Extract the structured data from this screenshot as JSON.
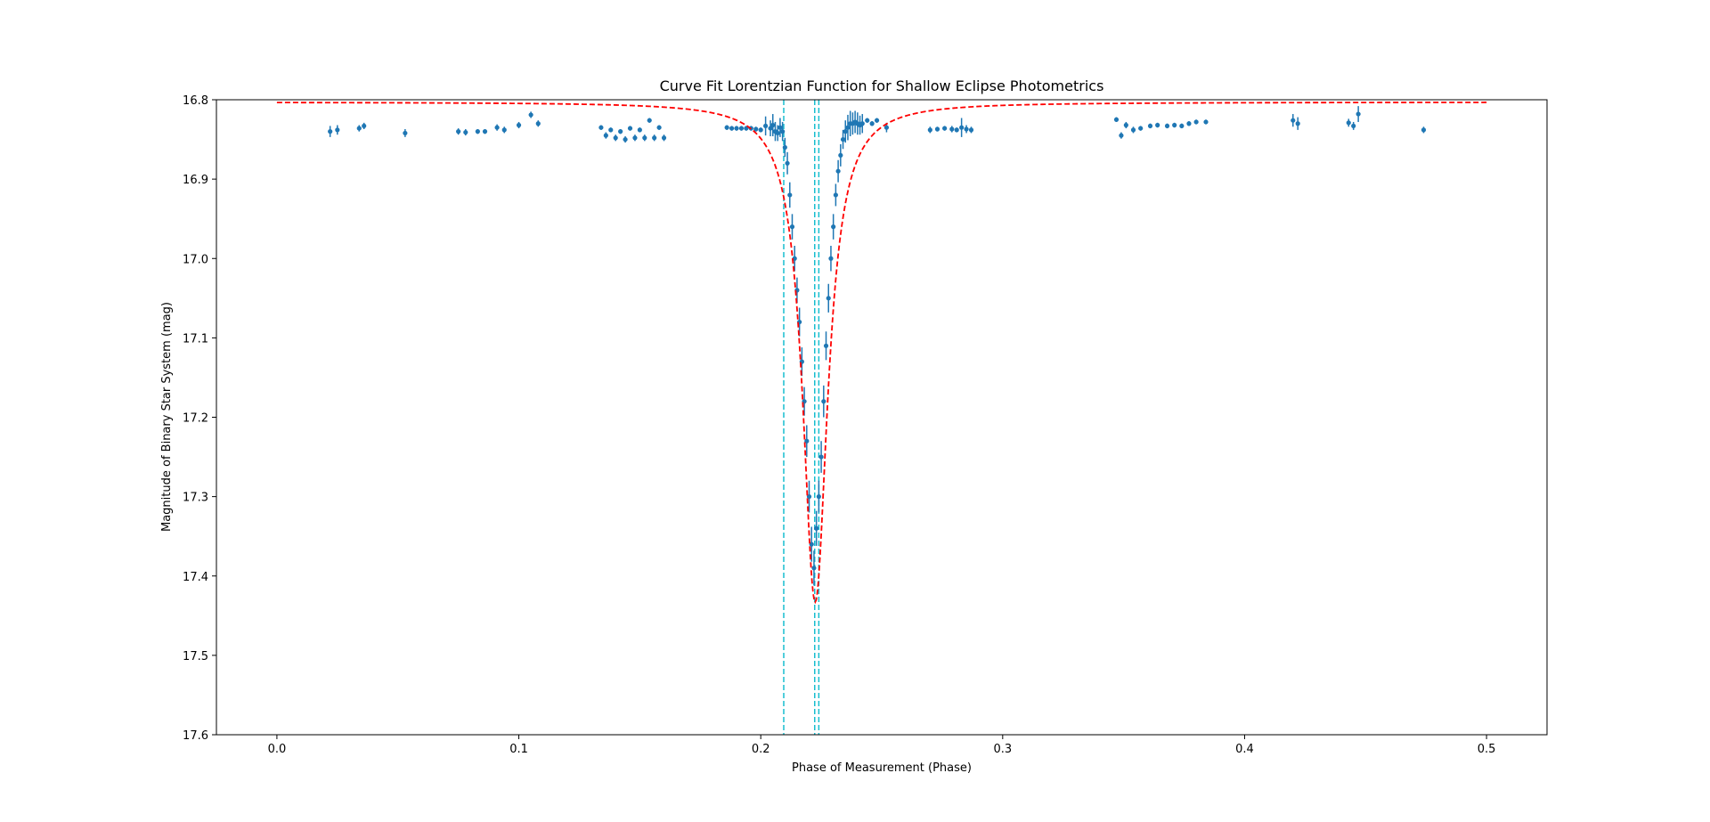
{
  "chart_data": {
    "type": "scatter",
    "title": "Curve Fit Lorentzian Function for Shallow Eclipse Photometrics",
    "xlabel": "Phase of Measurement (Phase)",
    "ylabel": "Magnitude of Binary Star System (mag)",
    "xlim": [
      -0.025,
      0.525
    ],
    "ylim": [
      16.8,
      17.6
    ],
    "y_inverted": true,
    "grid": false,
    "legend": "none",
    "xticks": [
      0.0,
      0.1,
      0.2,
      0.3,
      0.4,
      0.5
    ],
    "xtick_labels": [
      "0.0",
      "0.1",
      "0.2",
      "0.3",
      "0.4",
      "0.5"
    ],
    "yticks": [
      16.8,
      16.9,
      17.0,
      17.1,
      17.2,
      17.3,
      17.4,
      17.5,
      17.6
    ],
    "ytick_labels": [
      "16.8",
      "16.9",
      "17.0",
      "17.1",
      "17.2",
      "17.3",
      "17.4",
      "17.5",
      "17.6"
    ],
    "colors": {
      "data": "#1f77b4",
      "fit": "#ff0000",
      "vlines": "#17becf"
    },
    "series": [
      {
        "kind": "errorbar-points",
        "color": "#1f77b4",
        "x": [
          0.022,
          0.025,
          0.034,
          0.036,
          0.053,
          0.075,
          0.078,
          0.083,
          0.086,
          0.091,
          0.094,
          0.1,
          0.105,
          0.108,
          0.134,
          0.136,
          0.138,
          0.14,
          0.142,
          0.144,
          0.146,
          0.148,
          0.15,
          0.152,
          0.154,
          0.156,
          0.158,
          0.16,
          0.186,
          0.188,
          0.19,
          0.192,
          0.194,
          0.196,
          0.198,
          0.2,
          0.202,
          0.204,
          0.205,
          0.206,
          0.207,
          0.208,
          0.209,
          0.21,
          0.211,
          0.212,
          0.213,
          0.214,
          0.215,
          0.216,
          0.217,
          0.218,
          0.219,
          0.22,
          0.221,
          0.222,
          0.223,
          0.224,
          0.225,
          0.226,
          0.227,
          0.228,
          0.229,
          0.23,
          0.231,
          0.232,
          0.233,
          0.234,
          0.235,
          0.236,
          0.237,
          0.238,
          0.239,
          0.24,
          0.241,
          0.242,
          0.244,
          0.246,
          0.248,
          0.252,
          0.27,
          0.273,
          0.276,
          0.279,
          0.281,
          0.283,
          0.285,
          0.287,
          0.347,
          0.349,
          0.351,
          0.354,
          0.357,
          0.361,
          0.364,
          0.368,
          0.371,
          0.374,
          0.377,
          0.38,
          0.384,
          0.42,
          0.422,
          0.443,
          0.445,
          0.447,
          0.474
        ],
        "y": [
          16.84,
          16.838,
          16.836,
          16.833,
          16.842,
          16.84,
          16.841,
          16.84,
          16.84,
          16.835,
          16.838,
          16.832,
          16.819,
          16.83,
          16.835,
          16.845,
          16.838,
          16.848,
          16.84,
          16.85,
          16.836,
          16.848,
          16.838,
          16.848,
          16.826,
          16.848,
          16.835,
          16.848,
          16.835,
          16.836,
          16.836,
          16.836,
          16.836,
          16.836,
          16.837,
          16.838,
          16.833,
          16.836,
          16.832,
          16.84,
          16.842,
          16.835,
          16.84,
          16.86,
          16.88,
          16.92,
          16.96,
          17.0,
          17.04,
          17.08,
          17.13,
          17.18,
          17.23,
          17.3,
          17.36,
          17.39,
          17.34,
          17.3,
          17.25,
          17.18,
          17.11,
          17.05,
          17.0,
          16.96,
          16.92,
          16.89,
          16.87,
          16.85,
          16.84,
          16.835,
          16.83,
          16.83,
          16.828,
          16.83,
          16.832,
          16.83,
          16.826,
          16.83,
          16.826,
          16.835,
          16.838,
          16.837,
          16.836,
          16.837,
          16.838,
          16.835,
          16.837,
          16.838,
          16.825,
          16.845,
          16.832,
          16.838,
          16.836,
          16.833,
          16.832,
          16.833,
          16.832,
          16.833,
          16.83,
          16.828,
          16.828,
          16.826,
          16.83,
          16.829,
          16.833,
          16.818,
          16.838
        ],
        "yerr": [
          0.007,
          0.006,
          0.004,
          0.004,
          0.005,
          0.004,
          0.004,
          0.003,
          0.003,
          0.004,
          0.004,
          0.004,
          0.004,
          0.004,
          0.003,
          0.004,
          0.003,
          0.004,
          0.003,
          0.004,
          0.003,
          0.004,
          0.003,
          0.004,
          0.003,
          0.004,
          0.003,
          0.004,
          0.003,
          0.003,
          0.003,
          0.003,
          0.003,
          0.003,
          0.003,
          0.003,
          0.012,
          0.01,
          0.014,
          0.012,
          0.01,
          0.012,
          0.012,
          0.012,
          0.014,
          0.016,
          0.016,
          0.016,
          0.016,
          0.018,
          0.018,
          0.018,
          0.02,
          0.02,
          0.022,
          0.022,
          0.022,
          0.02,
          0.02,
          0.02,
          0.018,
          0.018,
          0.016,
          0.016,
          0.014,
          0.014,
          0.014,
          0.012,
          0.014,
          0.016,
          0.016,
          0.014,
          0.014,
          0.014,
          0.012,
          0.012,
          0.003,
          0.003,
          0.003,
          0.006,
          0.004,
          0.003,
          0.003,
          0.004,
          0.003,
          0.012,
          0.005,
          0.004,
          0.003,
          0.004,
          0.004,
          0.004,
          0.003,
          0.003,
          0.003,
          0.003,
          0.003,
          0.003,
          0.003,
          0.003,
          0.003,
          0.008,
          0.008,
          0.005,
          0.005,
          0.01,
          0.004
        ]
      },
      {
        "kind": "fit-line",
        "style": "dashed",
        "color": "#ff0000",
        "model": "lorentzian",
        "x_range": [
          0.0,
          0.5
        ],
        "baseline": 16.803,
        "amplitude": 0.63,
        "center": 0.2225,
        "hwhm": 0.0063
      }
    ],
    "vertical_lines": [
      {
        "x": 0.2095,
        "color": "#17becf",
        "style": "dashed"
      },
      {
        "x": 0.2223,
        "color": "#17becf",
        "style": "dashed"
      },
      {
        "x": 0.224,
        "color": "#17becf",
        "style": "dashed"
      }
    ]
  }
}
